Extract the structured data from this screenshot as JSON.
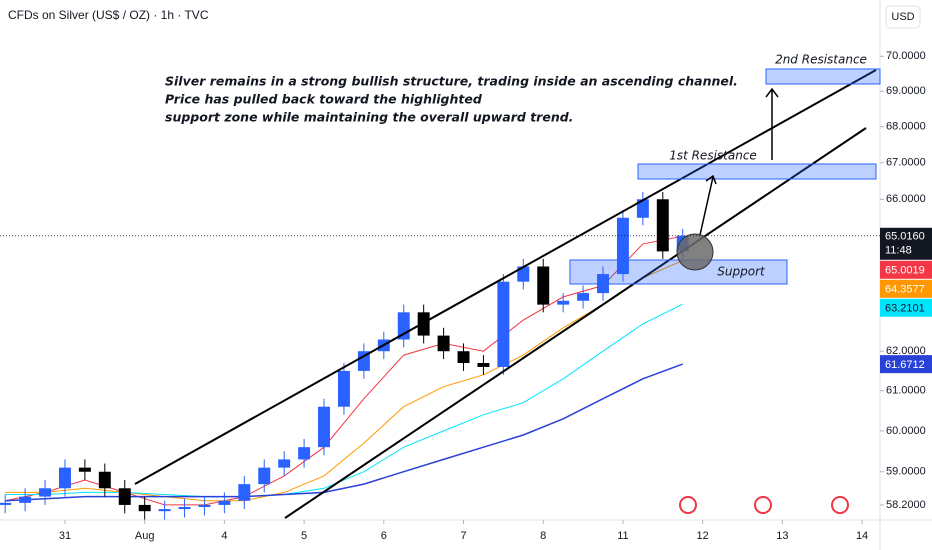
{
  "chart_data": {
    "type": "candlestick",
    "title": "CFDs on Silver (US$ / OZ) · 1h · TVC",
    "currency": "USD",
    "log_scale": true,
    "grid": false,
    "up_color": "#2962ff",
    "down_color": "#000000",
    "x": [
      -0.75,
      -0.5,
      -0.25,
      0,
      0.25,
      0.5,
      0.75,
      1,
      1.25,
      1.5,
      1.75,
      2,
      2.25,
      2.5,
      2.75,
      3,
      3.25,
      3.5,
      3.75,
      4,
      4.25,
      4.5,
      4.75,
      5,
      5.25,
      5.5,
      5.75,
      6,
      6.25,
      6.5,
      6.75,
      7,
      7.25,
      7.5,
      7.75
    ],
    "open": [
      58.2,
      58.25,
      58.4,
      58.6,
      59.1,
      59.0,
      58.6,
      58.2,
      58.05,
      58.1,
      58.15,
      58.2,
      58.3,
      58.7,
      59.1,
      59.3,
      59.6,
      60.6,
      61.5,
      62.0,
      62.3,
      63.0,
      62.4,
      62.0,
      61.7,
      61.6,
      63.8,
      64.2,
      63.2,
      63.3,
      63.5,
      64.0,
      65.5,
      66.0,
      64.6
    ],
    "high": [
      58.45,
      58.6,
      58.8,
      59.3,
      59.3,
      59.2,
      58.8,
      58.4,
      58.3,
      58.35,
      58.4,
      58.5,
      58.9,
      59.3,
      59.5,
      59.8,
      60.8,
      61.7,
      62.2,
      62.5,
      63.2,
      63.2,
      62.6,
      62.2,
      61.9,
      64.0,
      64.4,
      64.4,
      63.5,
      63.7,
      64.2,
      65.7,
      66.2,
      66.2,
      65.2
    ],
    "low": [
      58.0,
      58.05,
      58.2,
      58.4,
      58.8,
      58.4,
      58.0,
      57.85,
      57.85,
      57.9,
      57.95,
      58.0,
      58.1,
      58.5,
      58.9,
      59.1,
      59.4,
      60.4,
      61.3,
      61.8,
      62.1,
      62.2,
      61.8,
      61.5,
      61.4,
      61.4,
      63.6,
      63.0,
      63.0,
      63.1,
      63.3,
      63.8,
      65.3,
      64.4,
      64.4
    ],
    "close": [
      58.25,
      58.4,
      58.6,
      59.1,
      59.0,
      58.6,
      58.2,
      58.05,
      58.1,
      58.15,
      58.2,
      58.3,
      58.7,
      59.1,
      59.3,
      59.6,
      60.6,
      61.5,
      62.0,
      62.3,
      63.0,
      62.4,
      62.0,
      61.7,
      61.6,
      63.8,
      64.2,
      63.2,
      63.3,
      63.5,
      64.0,
      65.5,
      66.0,
      64.6,
      65.02
    ],
    "ma_x": [
      -0.75,
      -0.25,
      0.25,
      0.75,
      1.25,
      1.75,
      2.25,
      2.75,
      3.25,
      3.75,
      4.25,
      4.75,
      5.25,
      5.75,
      6.25,
      6.75,
      7.25,
      7.75
    ],
    "moving_averages": [
      {
        "color": "#f23645",
        "values": [
          58.3,
          58.5,
          58.8,
          58.5,
          58.2,
          58.2,
          58.4,
          58.9,
          59.6,
          60.8,
          61.9,
          62.2,
          62.0,
          62.8,
          63.4,
          63.7,
          64.8,
          65.0019
        ]
      },
      {
        "color": "#ff9800",
        "values": [
          58.5,
          58.5,
          58.6,
          58.5,
          58.4,
          58.3,
          58.3,
          58.5,
          58.9,
          59.7,
          60.6,
          61.1,
          61.4,
          61.9,
          62.6,
          63.2,
          63.9,
          64.3577
        ]
      },
      {
        "color": "#00e5ff",
        "values": [
          58.45,
          58.45,
          58.5,
          58.5,
          58.45,
          58.4,
          58.4,
          58.45,
          58.6,
          59.0,
          59.6,
          60.0,
          60.4,
          60.7,
          61.3,
          62.0,
          62.7,
          63.2101
        ]
      },
      {
        "color": "#2941d6",
        "values": [
          58.3,
          58.35,
          58.4,
          58.4,
          58.4,
          58.4,
          58.4,
          58.45,
          58.5,
          58.7,
          59.0,
          59.3,
          59.6,
          59.9,
          60.3,
          60.8,
          61.3,
          61.6712
        ]
      }
    ],
    "last_price": {
      "value": 65.016,
      "label": "65.0160",
      "countdown": "11:48",
      "color": "#131722"
    },
    "badges": [
      {
        "value": 65.0019,
        "label": "65.0019",
        "color": "#f23645"
      },
      {
        "value": 64.3577,
        "label": "64.3577",
        "color": "#ff9800"
      },
      {
        "value": 63.2101,
        "label": "63.2101",
        "color": "#00e5ff"
      },
      {
        "value": 61.6712,
        "label": "61.6712",
        "color": "#2941d6"
      }
    ],
    "xlim": [
      -0.815,
      10.225
    ],
    "xticks": [
      {
        "value": 0,
        "label": "31"
      },
      {
        "value": 1,
        "label": "Aug"
      },
      {
        "value": 2,
        "label": "4"
      },
      {
        "value": 3,
        "label": "5"
      },
      {
        "value": 4,
        "label": "6"
      },
      {
        "value": 5,
        "label": "7"
      },
      {
        "value": 6,
        "label": "8"
      },
      {
        "value": 7,
        "label": "11"
      },
      {
        "value": 8,
        "label": "12"
      },
      {
        "value": 9,
        "label": "13"
      },
      {
        "value": 10,
        "label": "14"
      }
    ],
    "ylim": [
      57.84,
      71.64
    ],
    "yticks": [
      {
        "value": 70,
        "label": "70.0000"
      },
      {
        "value": 69,
        "label": "69.0000"
      },
      {
        "value": 68,
        "label": "68.0000"
      },
      {
        "value": 67,
        "label": "67.0000"
      },
      {
        "value": 66,
        "label": "66.0000"
      },
      {
        "value": 62,
        "label": "62.0000"
      },
      {
        "value": 61,
        "label": "61.0000"
      },
      {
        "value": 60,
        "label": "60.0000"
      },
      {
        "value": 59,
        "label": "59.0000"
      },
      {
        "value": 58.2,
        "label": "58.2000"
      }
    ],
    "annotations": {
      "note": [
        "Silver remains in a strong bullish structure, trading inside an ascending channel.",
        "Price has pulled back toward the highlighted",
        "support zone while maintaining the overall upward trend."
      ],
      "resistance_2": "2nd Resistance",
      "resistance_1": "1st Resistance",
      "support": "Support"
    }
  }
}
